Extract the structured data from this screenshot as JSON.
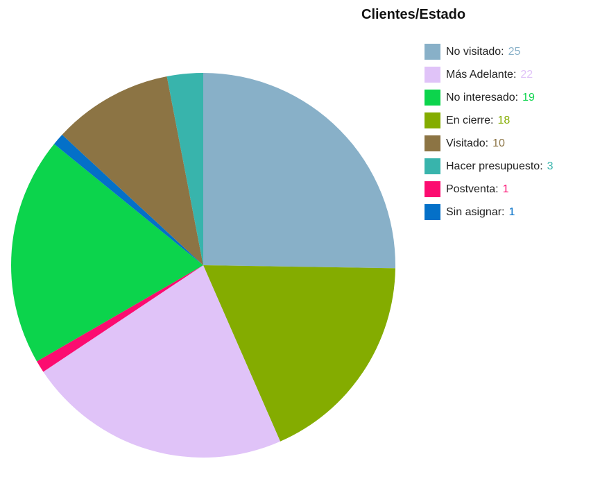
{
  "chart_data": {
    "type": "pie",
    "title": "Clientes/Estado",
    "slices": [
      {
        "label": "No visitado:",
        "value": 25,
        "color": "#88b0c8"
      },
      {
        "label": "Más Adelante:",
        "value": 22,
        "color": "#e0c3f8"
      },
      {
        "label": "No interesado:",
        "value": 19,
        "color": "#0cd44c"
      },
      {
        "label": "En cierre:",
        "value": 18,
        "color": "#84ac00"
      },
      {
        "label": "Visitado:",
        "value": 10,
        "color": "#8c7444"
      },
      {
        "label": "Hacer presupuesto:",
        "value": 3,
        "color": "#38b4ac"
      },
      {
        "label": "Postventa:",
        "value": 1,
        "color": "#fc0c70"
      },
      {
        "label": "Sin asignar:",
        "value": 1,
        "color": "#0470c8"
      }
    ],
    "pie_order": [
      "No visitado:",
      "En cierre:",
      "Más Adelante:",
      "Postventa:",
      "No interesado:",
      "Sin asignar:",
      "Visitado:",
      "Hacer presupuesto:"
    ],
    "legend_position": "top-right"
  }
}
